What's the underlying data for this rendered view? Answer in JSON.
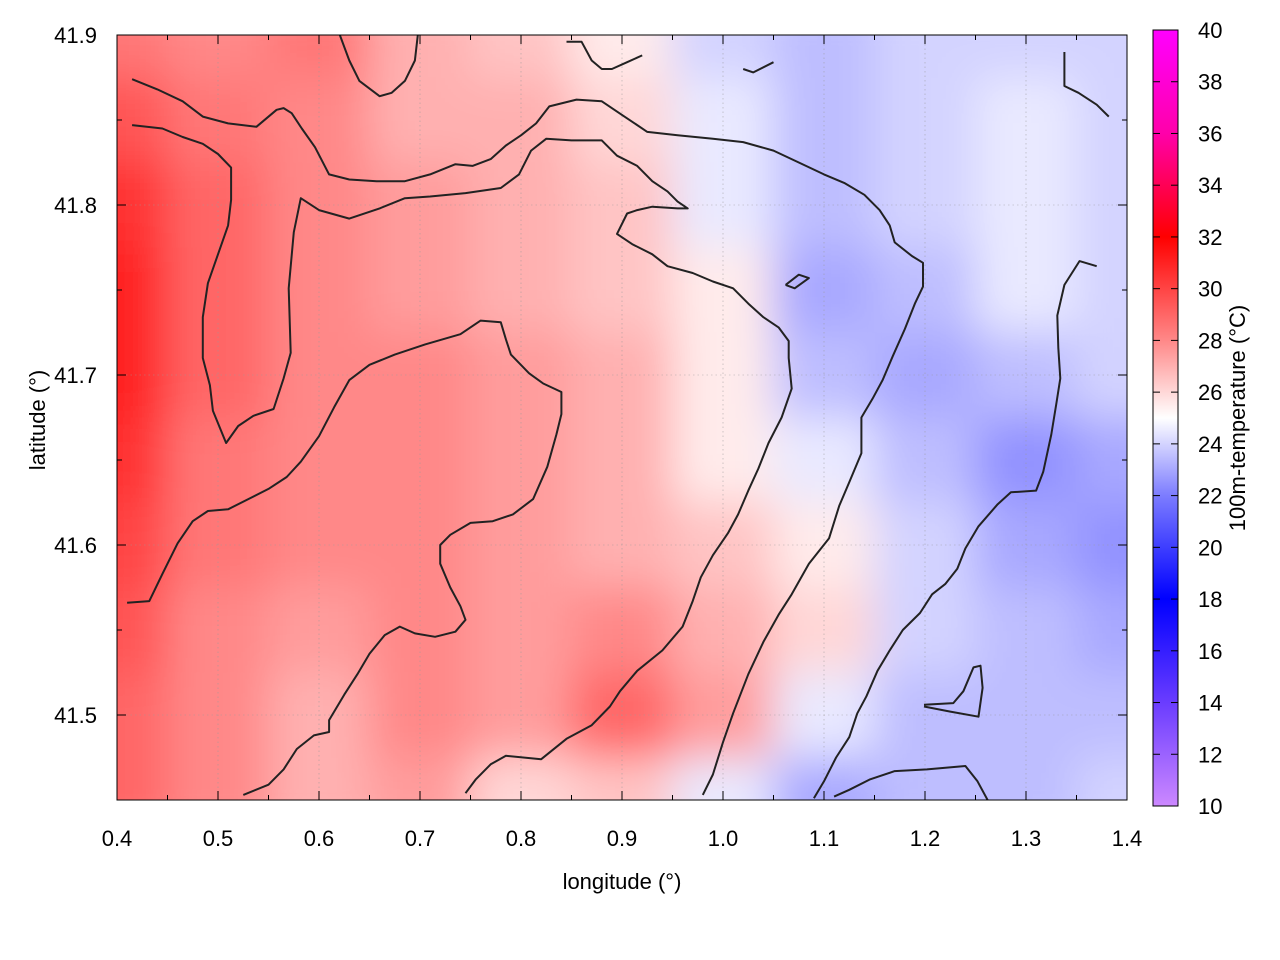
{
  "chart_data": {
    "type": "heatmap",
    "title": "",
    "xlabel": "longitude (°)",
    "ylabel": "latitude (°)",
    "colorbar_label": "100m-temperature (°C)",
    "xlim": [
      0.4,
      1.4
    ],
    "ylim": [
      41.45,
      41.9
    ],
    "x_ticks": [
      "0.4",
      "0.5",
      "0.6",
      "0.7",
      "0.8",
      "0.9",
      "1.0",
      "1.1",
      "1.2",
      "1.3",
      "1.4"
    ],
    "y_ticks": [
      "41.5",
      "41.6",
      "41.7",
      "41.8",
      "41.9"
    ],
    "colorbar_range": [
      10,
      40
    ],
    "colorbar_ticks": [
      "10",
      "12",
      "14",
      "16",
      "18",
      "20",
      "22",
      "24",
      "26",
      "28",
      "30",
      "32",
      "34",
      "36",
      "38",
      "40"
    ],
    "colormap": [
      {
        "value": 10,
        "color": "#cc88ff"
      },
      {
        "value": 14,
        "color": "#6a3cff"
      },
      {
        "value": 18,
        "color": "#0000ff"
      },
      {
        "value": 22,
        "color": "#7c7cff"
      },
      {
        "value": 25,
        "color": "#ffffff"
      },
      {
        "value": 28,
        "color": "#ff8888"
      },
      {
        "value": 32,
        "color": "#ff0000"
      },
      {
        "value": 36,
        "color": "#ff00aa"
      },
      {
        "value": 40,
        "color": "#ff00ff"
      }
    ],
    "grid": true,
    "temperature_field": {
      "lon": [
        0.4,
        0.5,
        0.6,
        0.7,
        0.8,
        0.9,
        1.0,
        1.1,
        1.2,
        1.3,
        1.4
      ],
      "lat": [
        41.9,
        41.85,
        41.8,
        41.75,
        41.7,
        41.65,
        41.6,
        41.55,
        41.5,
        41.45
      ],
      "values": [
        [
          28.5,
          28.0,
          28.5,
          27.0,
          26.5,
          25.5,
          24.0,
          23.5,
          24.0,
          24.0,
          24.0
        ],
        [
          29.5,
          28.5,
          28.0,
          27.0,
          27.0,
          26.0,
          24.5,
          23.5,
          24.0,
          24.5,
          24.0
        ],
        [
          30.5,
          29.0,
          28.0,
          27.5,
          27.0,
          26.5,
          24.5,
          23.5,
          24.0,
          24.5,
          24.0
        ],
        [
          31.0,
          29.0,
          28.0,
          27.5,
          27.0,
          26.5,
          25.5,
          23.0,
          23.5,
          24.5,
          24.0
        ],
        [
          31.0,
          29.0,
          28.0,
          28.0,
          27.5,
          27.0,
          25.5,
          23.5,
          23.0,
          23.5,
          24.0
        ],
        [
          30.5,
          28.5,
          28.0,
          28.0,
          27.5,
          27.0,
          25.5,
          24.5,
          23.5,
          22.5,
          23.0
        ],
        [
          30.0,
          28.5,
          28.0,
          28.0,
          27.5,
          27.0,
          26.5,
          25.5,
          24.0,
          23.0,
          22.5
        ],
        [
          29.5,
          28.0,
          27.5,
          28.0,
          27.5,
          28.0,
          27.0,
          26.0,
          24.0,
          23.5,
          23.0
        ],
        [
          29.0,
          28.0,
          27.0,
          28.0,
          27.5,
          29.0,
          27.5,
          24.5,
          23.5,
          23.5,
          23.5
        ],
        [
          29.0,
          28.0,
          27.0,
          27.5,
          26.0,
          26.5,
          24.5,
          23.0,
          23.5,
          23.5,
          24.0
        ]
      ]
    },
    "contours": [
      [
        [
          0.415,
          41.874
        ],
        [
          0.44,
          41.868
        ],
        [
          0.465,
          41.861
        ],
        [
          0.485,
          41.852
        ],
        [
          0.51,
          41.848
        ],
        [
          0.538,
          41.846
        ],
        [
          0.548,
          41.851
        ],
        [
          0.558,
          41.856
        ],
        [
          0.565,
          41.857
        ],
        [
          0.573,
          41.854
        ],
        [
          0.583,
          41.845
        ],
        [
          0.596,
          41.834
        ],
        [
          0.61,
          41.818
        ],
        [
          0.63,
          41.815
        ],
        [
          0.657,
          41.814
        ],
        [
          0.685,
          41.814
        ],
        [
          0.71,
          41.818
        ],
        [
          0.735,
          41.824
        ],
        [
          0.752,
          41.823
        ],
        [
          0.77,
          41.827
        ],
        [
          0.785,
          41.835
        ],
        [
          0.8,
          41.841
        ],
        [
          0.815,
          41.848
        ],
        [
          0.828,
          41.858
        ],
        [
          0.855,
          41.862
        ],
        [
          0.88,
          41.861
        ],
        [
          0.9,
          41.853
        ],
        [
          0.925,
          41.843
        ],
        [
          0.955,
          41.841
        ],
        [
          0.99,
          41.839
        ],
        [
          1.02,
          41.837
        ],
        [
          1.05,
          41.832
        ],
        [
          1.075,
          41.825
        ],
        [
          1.1,
          41.818
        ],
        [
          1.12,
          41.813
        ],
        [
          1.14,
          41.806
        ],
        [
          1.155,
          41.797
        ],
        [
          1.165,
          41.788
        ],
        [
          1.17,
          41.778
        ],
        [
          1.187,
          41.77
        ],
        [
          1.198,
          41.766
        ],
        [
          1.198,
          41.752
        ],
        [
          1.19,
          41.742
        ],
        [
          1.18,
          41.727
        ],
        [
          1.168,
          41.711
        ],
        [
          1.158,
          41.697
        ],
        [
          1.148,
          41.686
        ],
        [
          1.137,
          41.675
        ],
        [
          1.137,
          41.654
        ],
        [
          1.125,
          41.637
        ],
        [
          1.115,
          41.623
        ],
        [
          1.105,
          41.604
        ],
        [
          1.085,
          41.589
        ],
        [
          1.068,
          41.571
        ],
        [
          1.055,
          41.559
        ],
        [
          1.04,
          41.543
        ],
        [
          1.025,
          41.524
        ],
        [
          1.01,
          41.501
        ],
        [
          1.0,
          41.484
        ],
        [
          0.99,
          41.465
        ],
        [
          0.98,
          41.453
        ]
      ],
      [
        [
          0.415,
          41.847
        ],
        [
          0.445,
          41.845
        ],
        [
          0.465,
          41.84
        ],
        [
          0.485,
          41.836
        ],
        [
          0.5,
          41.83
        ],
        [
          0.513,
          41.822
        ],
        [
          0.513,
          41.803
        ],
        [
          0.51,
          41.788
        ],
        [
          0.5,
          41.771
        ],
        [
          0.49,
          41.754
        ],
        [
          0.485,
          41.734
        ],
        [
          0.485,
          41.71
        ],
        [
          0.492,
          41.694
        ],
        [
          0.495,
          41.679
        ],
        [
          0.508,
          41.66
        ],
        [
          0.52,
          41.67
        ],
        [
          0.535,
          41.676
        ],
        [
          0.555,
          41.68
        ],
        [
          0.565,
          41.698
        ],
        [
          0.572,
          41.713
        ],
        [
          0.57,
          41.751
        ],
        [
          0.575,
          41.784
        ],
        [
          0.582,
          41.804
        ],
        [
          0.6,
          41.797
        ],
        [
          0.63,
          41.792
        ],
        [
          0.66,
          41.798
        ],
        [
          0.685,
          41.804
        ],
        [
          0.71,
          41.805
        ],
        [
          0.745,
          41.807
        ],
        [
          0.78,
          41.81
        ],
        [
          0.798,
          41.818
        ],
        [
          0.81,
          41.832
        ],
        [
          0.825,
          41.839
        ],
        [
          0.85,
          41.838
        ],
        [
          0.88,
          41.838
        ],
        [
          0.895,
          41.829
        ],
        [
          0.915,
          41.823
        ],
        [
          0.93,
          41.814
        ],
        [
          0.945,
          41.808
        ],
        [
          0.955,
          41.802
        ],
        [
          0.965,
          41.798
        ],
        [
          0.955,
          41.798
        ],
        [
          0.93,
          41.799
        ],
        [
          0.915,
          41.797
        ],
        [
          0.905,
          41.795
        ],
        [
          0.895,
          41.783
        ],
        [
          0.91,
          41.777
        ],
        [
          0.93,
          41.771
        ],
        [
          0.945,
          41.764
        ],
        [
          0.97,
          41.76
        ],
        [
          0.99,
          41.755
        ],
        [
          1.01,
          41.751
        ],
        [
          1.025,
          41.742
        ],
        [
          1.04,
          41.734
        ],
        [
          1.055,
          41.728
        ],
        [
          1.065,
          41.72
        ],
        [
          1.065,
          41.71
        ],
        [
          1.068,
          41.692
        ],
        [
          1.058,
          41.675
        ],
        [
          1.045,
          41.66
        ],
        [
          1.035,
          41.645
        ],
        [
          1.025,
          41.632
        ],
        [
          1.015,
          41.618
        ],
        [
          1.005,
          41.607
        ],
        [
          0.99,
          41.594
        ],
        [
          0.978,
          41.581
        ],
        [
          0.97,
          41.567
        ],
        [
          0.96,
          41.552
        ],
        [
          0.94,
          41.538
        ],
        [
          0.915,
          41.526
        ],
        [
          0.898,
          41.514
        ],
        [
          0.888,
          41.505
        ],
        [
          0.87,
          41.494
        ],
        [
          0.845,
          41.486
        ],
        [
          0.82,
          41.474
        ],
        [
          0.785,
          41.476
        ],
        [
          0.77,
          41.471
        ],
        [
          0.755,
          41.462
        ],
        [
          0.745,
          41.454
        ]
      ],
      [
        [
          0.41,
          41.566
        ],
        [
          0.432,
          41.567
        ],
        [
          0.445,
          41.583
        ],
        [
          0.46,
          41.601
        ],
        [
          0.475,
          41.614
        ],
        [
          0.49,
          41.62
        ],
        [
          0.51,
          41.621
        ],
        [
          0.53,
          41.627
        ],
        [
          0.55,
          41.633
        ],
        [
          0.568,
          41.64
        ],
        [
          0.582,
          41.649
        ],
        [
          0.6,
          41.664
        ],
        [
          0.615,
          41.681
        ],
        [
          0.63,
          41.697
        ],
        [
          0.65,
          41.706
        ],
        [
          0.675,
          41.712
        ],
        [
          0.705,
          41.718
        ],
        [
          0.74,
          41.724
        ],
        [
          0.76,
          41.732
        ],
        [
          0.78,
          41.731
        ],
        [
          0.785,
          41.721
        ],
        [
          0.79,
          41.712
        ],
        [
          0.808,
          41.701
        ],
        [
          0.822,
          41.695
        ],
        [
          0.84,
          41.69
        ],
        [
          0.84,
          41.677
        ],
        [
          0.835,
          41.665
        ],
        [
          0.826,
          41.646
        ],
        [
          0.812,
          41.627
        ],
        [
          0.792,
          41.618
        ],
        [
          0.772,
          41.614
        ],
        [
          0.75,
          41.613
        ],
        [
          0.73,
          41.606
        ],
        [
          0.72,
          41.6
        ],
        [
          0.72,
          41.589
        ],
        [
          0.73,
          41.575
        ],
        [
          0.74,
          41.564
        ],
        [
          0.745,
          41.556
        ],
        [
          0.735,
          41.549
        ],
        [
          0.715,
          41.546
        ],
        [
          0.695,
          41.548
        ],
        [
          0.68,
          41.552
        ],
        [
          0.665,
          41.547
        ],
        [
          0.65,
          41.536
        ],
        [
          0.638,
          41.524
        ],
        [
          0.625,
          41.512
        ],
        [
          0.61,
          41.497
        ],
        [
          0.61,
          41.49
        ],
        [
          0.595,
          41.488
        ],
        [
          0.578,
          41.48
        ],
        [
          0.565,
          41.468
        ],
        [
          0.55,
          41.459
        ],
        [
          0.525,
          41.453
        ]
      ],
      [
        [
          0.845,
          41.896
        ],
        [
          0.86,
          41.896
        ],
        [
          0.87,
          41.885
        ],
        [
          0.88,
          41.88
        ],
        [
          0.89,
          41.88
        ],
        [
          0.905,
          41.884
        ],
        [
          0.92,
          41.888
        ]
      ],
      [
        [
          0.62,
          41.901
        ],
        [
          0.63,
          41.885
        ],
        [
          0.64,
          41.873
        ],
        [
          0.66,
          41.864
        ],
        [
          0.672,
          41.866
        ],
        [
          0.685,
          41.873
        ],
        [
          0.695,
          41.885
        ],
        [
          0.698,
          41.901
        ]
      ],
      [
        [
          1.02,
          41.88
        ],
        [
          1.03,
          41.878
        ],
        [
          1.05,
          41.884
        ]
      ],
      [
        [
          1.062,
          41.753
        ],
        [
          1.071,
          41.751
        ],
        [
          1.085,
          41.757
        ],
        [
          1.075,
          41.759
        ],
        [
          1.062,
          41.753
        ]
      ],
      [
        [
          1.338,
          41.89
        ],
        [
          1.338,
          41.87
        ],
        [
          1.352,
          41.866
        ],
        [
          1.37,
          41.859
        ],
        [
          1.382,
          41.852
        ]
      ],
      [
        [
          1.37,
          41.764
        ],
        [
          1.353,
          41.767
        ],
        [
          1.338,
          41.753
        ],
        [
          1.331,
          41.735
        ],
        [
          1.332,
          41.716
        ],
        [
          1.334,
          41.698
        ],
        [
          1.33,
          41.683
        ],
        [
          1.325,
          41.665
        ],
        [
          1.317,
          41.643
        ],
        [
          1.31,
          41.632
        ],
        [
          1.285,
          41.631
        ],
        [
          1.272,
          41.624
        ],
        [
          1.253,
          41.611
        ],
        [
          1.24,
          41.598
        ],
        [
          1.232,
          41.586
        ],
        [
          1.22,
          41.577
        ],
        [
          1.207,
          41.571
        ],
        [
          1.195,
          41.56
        ],
        [
          1.178,
          41.55
        ],
        [
          1.165,
          41.538
        ],
        [
          1.153,
          41.526
        ],
        [
          1.142,
          41.511
        ],
        [
          1.133,
          41.501
        ],
        [
          1.125,
          41.487
        ],
        [
          1.112,
          41.475
        ],
        [
          1.1,
          41.461
        ],
        [
          1.09,
          41.451
        ]
      ],
      [
        [
          1.199,
          41.506
        ],
        [
          1.228,
          41.507
        ],
        [
          1.238,
          41.514
        ],
        [
          1.248,
          41.528
        ],
        [
          1.255,
          41.529
        ],
        [
          1.257,
          41.516
        ],
        [
          1.253,
          41.499
        ],
        [
          1.225,
          41.502
        ],
        [
          1.199,
          41.505
        ]
      ],
      [
        [
          1.11,
          41.452
        ],
        [
          1.125,
          41.456
        ],
        [
          1.145,
          41.462
        ],
        [
          1.17,
          41.467
        ],
        [
          1.202,
          41.468
        ],
        [
          1.24,
          41.47
        ],
        [
          1.252,
          41.461
        ],
        [
          1.262,
          41.45
        ]
      ]
    ]
  }
}
